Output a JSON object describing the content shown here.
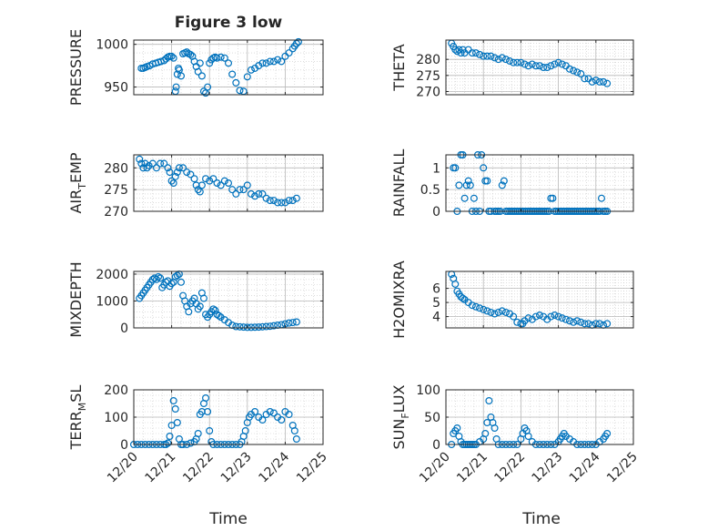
{
  "figure": {
    "title": "Figure 3 low",
    "xlabel_left": "Time",
    "xlabel_right": "Time",
    "x_tick_labels": [
      "12/20",
      "12/21",
      "12/22",
      "12/23",
      "12/24",
      "12/25"
    ]
  },
  "colors": {
    "marker": "#0072BD",
    "grid": "#c8c8c8",
    "axis": "#262626",
    "background": "#ffffff"
  },
  "chart_data": [
    {
      "id": "pressure",
      "type": "scatter",
      "marker": "open-circle",
      "ylabel_parts": [
        "PRESSURE"
      ],
      "xlim": [
        0,
        5
      ],
      "ylim": [
        941,
        1005
      ],
      "yticks": [
        950,
        1000
      ],
      "ytick_labels": [
        "950",
        "1000"
      ],
      "x": [
        0.2,
        0.25,
        0.3,
        0.35,
        0.42,
        0.5,
        0.58,
        0.65,
        0.72,
        0.8,
        0.85,
        0.9,
        0.95,
        1.0,
        1.05,
        1.1,
        1.12,
        1.15,
        1.18,
        1.2,
        1.25,
        1.3,
        1.35,
        1.4,
        1.45,
        1.5,
        1.55,
        1.6,
        1.65,
        1.7,
        1.75,
        1.8,
        1.85,
        1.9,
        1.95,
        2.0,
        2.05,
        2.1,
        2.15,
        2.2,
        2.3,
        2.4,
        2.5,
        2.6,
        2.7,
        2.8,
        2.9,
        3.0,
        3.1,
        3.2,
        3.3,
        3.4,
        3.5,
        3.6,
        3.7,
        3.8,
        3.9,
        4.0,
        4.1,
        4.2,
        4.25,
        4.3,
        4.35
      ],
      "y": [
        972,
        972,
        973,
        974,
        975,
        977,
        978,
        979,
        980,
        981,
        983,
        985,
        986,
        986,
        984,
        945,
        950,
        965,
        972,
        970,
        963,
        989,
        990,
        991,
        989,
        988,
        986,
        980,
        974,
        968,
        978,
        963,
        945,
        943,
        950,
        978,
        982,
        984,
        985,
        984,
        985,
        984,
        978,
        965,
        955,
        946,
        945,
        962,
        970,
        972,
        975,
        978,
        978,
        980,
        980,
        982,
        980,
        986,
        990,
        995,
        998,
        1001,
        1003
      ]
    },
    {
      "id": "theta",
      "type": "scatter",
      "marker": "open-circle",
      "ylabel_parts": [
        "THETA"
      ],
      "xlim": [
        0,
        5
      ],
      "ylim": [
        269,
        286
      ],
      "yticks": [
        270,
        275,
        280
      ],
      "ytick_labels": [
        "270",
        "275",
        "280"
      ],
      "x": [
        0.15,
        0.2,
        0.25,
        0.3,
        0.35,
        0.4,
        0.45,
        0.5,
        0.6,
        0.7,
        0.8,
        0.9,
        1.0,
        1.1,
        1.2,
        1.3,
        1.4,
        1.5,
        1.6,
        1.7,
        1.8,
        1.9,
        2.0,
        2.1,
        2.2,
        2.3,
        2.4,
        2.5,
        2.6,
        2.7,
        2.8,
        2.9,
        3.0,
        3.1,
        3.2,
        3.3,
        3.4,
        3.5,
        3.6,
        3.7,
        3.8,
        3.9,
        4.0,
        4.1,
        4.2,
        4.3
      ],
      "y": [
        285,
        284,
        283,
        282.5,
        283,
        282,
        283,
        282,
        283,
        282,
        282,
        281.5,
        281,
        281,
        281,
        280.5,
        280,
        280.5,
        280,
        279.5,
        279,
        279,
        279,
        278.5,
        278,
        278.5,
        278,
        278,
        277.5,
        277.5,
        278,
        278.5,
        279,
        278.5,
        278,
        277,
        276.5,
        276,
        275.5,
        274,
        274,
        273,
        273.5,
        273,
        273,
        272.5
      ]
    },
    {
      "id": "airtemp",
      "type": "scatter",
      "marker": "open-circle",
      "ylabel_parts": [
        "AIR",
        "T",
        "EMP"
      ],
      "xlim": [
        0,
        5
      ],
      "ylim": [
        270,
        283
      ],
      "yticks": [
        270,
        275,
        280
      ],
      "ytick_labels": [
        "270",
        "275",
        "280"
      ],
      "x": [
        0.15,
        0.2,
        0.25,
        0.3,
        0.35,
        0.4,
        0.5,
        0.6,
        0.7,
        0.8,
        0.9,
        0.95,
        1.0,
        1.05,
        1.1,
        1.15,
        1.2,
        1.3,
        1.4,
        1.5,
        1.6,
        1.65,
        1.7,
        1.75,
        1.8,
        1.9,
        2.0,
        2.1,
        2.2,
        2.3,
        2.4,
        2.5,
        2.6,
        2.7,
        2.8,
        2.9,
        3.0,
        3.1,
        3.2,
        3.3,
        3.4,
        3.5,
        3.6,
        3.7,
        3.8,
        3.9,
        4.0,
        4.1,
        4.2,
        4.3
      ],
      "y": [
        282,
        281,
        280,
        281,
        280,
        280.5,
        281,
        280,
        281,
        281,
        280,
        279,
        277,
        276.5,
        278,
        279,
        280,
        280,
        279,
        278.5,
        277.5,
        276,
        275,
        274.5,
        276,
        277.5,
        277,
        277.5,
        276.5,
        276,
        277,
        276.5,
        275,
        274,
        275,
        275,
        276,
        274,
        273.5,
        274,
        274,
        273,
        272.5,
        272.5,
        272,
        272,
        272,
        272.5,
        272.5,
        273
      ]
    },
    {
      "id": "rainfall",
      "type": "scatter",
      "marker": "open-circle",
      "ylabel_parts": [
        "RAINFALL"
      ],
      "xlim": [
        0,
        5
      ],
      "ylim": [
        0,
        1.3
      ],
      "yticks": [
        0,
        0.5,
        1
      ],
      "ytick_labels": [
        "0",
        "0.5",
        "1"
      ],
      "x": [
        0.2,
        0.25,
        0.3,
        0.35,
        0.4,
        0.45,
        0.5,
        0.55,
        0.6,
        0.65,
        0.7,
        0.75,
        0.8,
        0.85,
        0.9,
        0.95,
        1.0,
        1.05,
        1.1,
        1.15,
        1.2,
        1.3,
        1.35,
        1.4,
        1.45,
        1.5,
        1.55,
        1.6,
        1.65,
        1.7,
        1.75,
        1.8,
        1.85,
        1.9,
        1.95,
        2.0,
        2.05,
        2.1,
        2.15,
        2.2,
        2.25,
        2.3,
        2.35,
        2.4,
        2.45,
        2.5,
        2.55,
        2.6,
        2.65,
        2.7,
        2.75,
        2.8,
        2.85,
        2.9,
        2.95,
        3.0,
        3.05,
        3.1,
        3.15,
        3.2,
        3.25,
        3.3,
        3.35,
        3.4,
        3.45,
        3.5,
        3.55,
        3.6,
        3.65,
        3.7,
        3.75,
        3.8,
        3.85,
        3.9,
        3.95,
        4.0,
        4.05,
        4.1,
        4.15,
        4.2,
        4.25,
        4.3
      ],
      "y": [
        1,
        1,
        0,
        0.6,
        1.3,
        1.3,
        0.3,
        0.6,
        0.7,
        0.6,
        0,
        0.3,
        0,
        1.3,
        0,
        1.3,
        1,
        0.7,
        0.7,
        0,
        0,
        0,
        0,
        0,
        0,
        0.6,
        0.7,
        0,
        0,
        0,
        0,
        0,
        0,
        0,
        0,
        0,
        0,
        0,
        0,
        0,
        0,
        0,
        0,
        0,
        0,
        0,
        0,
        0,
        0,
        0,
        0,
        0.3,
        0.3,
        0,
        0,
        0,
        0,
        0,
        0,
        0,
        0,
        0,
        0,
        0,
        0,
        0,
        0,
        0,
        0,
        0,
        0,
        0,
        0,
        0,
        0,
        0,
        0,
        0,
        0.3,
        0,
        0,
        0
      ]
    },
    {
      "id": "mixdepth",
      "type": "scatter",
      "marker": "open-circle",
      "ylabel_parts": [
        "MIXDEPTH"
      ],
      "xlim": [
        0,
        5
      ],
      "ylim": [
        0,
        2100
      ],
      "yticks": [
        0,
        1000,
        2000
      ],
      "ytick_labels": [
        "0",
        "1000",
        "2000"
      ],
      "x": [
        0.15,
        0.2,
        0.25,
        0.3,
        0.35,
        0.4,
        0.45,
        0.5,
        0.55,
        0.6,
        0.65,
        0.7,
        0.75,
        0.8,
        0.85,
        0.9,
        0.95,
        1.0,
        1.05,
        1.1,
        1.15,
        1.2,
        1.25,
        1.3,
        1.35,
        1.4,
        1.45,
        1.5,
        1.55,
        1.6,
        1.65,
        1.7,
        1.75,
        1.8,
        1.85,
        1.9,
        1.95,
        2.0,
        2.05,
        2.1,
        2.15,
        2.2,
        2.25,
        2.3,
        2.4,
        2.5,
        2.6,
        2.7,
        2.8,
        2.9,
        3.0,
        3.1,
        3.2,
        3.3,
        3.4,
        3.5,
        3.6,
        3.7,
        3.8,
        3.9,
        4.0,
        4.1,
        4.2,
        4.3
      ],
      "y": [
        1100,
        1200,
        1300,
        1400,
        1500,
        1600,
        1700,
        1800,
        1850,
        1800,
        1900,
        1850,
        1500,
        1600,
        1700,
        1750,
        1550,
        1650,
        1700,
        1900,
        1950,
        2000,
        1700,
        1200,
        1000,
        800,
        600,
        900,
        1000,
        1100,
        900,
        700,
        800,
        1300,
        1100,
        500,
        400,
        500,
        600,
        700,
        650,
        500,
        450,
        400,
        300,
        200,
        100,
        50,
        40,
        30,
        20,
        20,
        25,
        30,
        40,
        50,
        60,
        80,
        100,
        120,
        150,
        180,
        200,
        220
      ]
    },
    {
      "id": "h2omixra",
      "type": "scatter",
      "marker": "open-circle",
      "ylabel_parts": [
        "H2OMIXRA"
      ],
      "xlim": [
        0,
        5
      ],
      "ylim": [
        3.2,
        7.2
      ],
      "yticks": [
        4,
        5,
        6
      ],
      "ytick_labels": [
        "4",
        "5",
        "6"
      ],
      "x": [
        0.15,
        0.2,
        0.25,
        0.3,
        0.35,
        0.4,
        0.45,
        0.5,
        0.6,
        0.7,
        0.8,
        0.9,
        1.0,
        1.1,
        1.2,
        1.3,
        1.4,
        1.5,
        1.6,
        1.7,
        1.8,
        1.9,
        2.0,
        2.05,
        2.1,
        2.2,
        2.3,
        2.4,
        2.5,
        2.6,
        2.7,
        2.8,
        2.9,
        3.0,
        3.1,
        3.2,
        3.3,
        3.4,
        3.5,
        3.6,
        3.7,
        3.8,
        3.9,
        4.0,
        4.1,
        4.2,
        4.3
      ],
      "y": [
        7,
        6.7,
        6.3,
        5.8,
        5.6,
        5.4,
        5.3,
        5.2,
        5.0,
        4.8,
        4.7,
        4.6,
        4.5,
        4.4,
        4.3,
        4.2,
        4.3,
        4.4,
        4.3,
        4.2,
        4.0,
        3.6,
        3.5,
        3.5,
        3.7,
        3.9,
        3.8,
        4.0,
        4.1,
        4.0,
        3.8,
        4.0,
        4.1,
        4.0,
        3.9,
        3.8,
        3.7,
        3.6,
        3.7,
        3.6,
        3.5,
        3.5,
        3.4,
        3.5,
        3.5,
        3.4,
        3.5
      ]
    },
    {
      "id": "terrmsl",
      "type": "scatter",
      "marker": "open-circle",
      "ylabel_parts": [
        "TERR",
        "M",
        "SL"
      ],
      "xlim": [
        0,
        5
      ],
      "ylim": [
        0,
        200
      ],
      "yticks": [
        0,
        100,
        200
      ],
      "ytick_labels": [
        "0",
        "100",
        "200"
      ],
      "x": [
        0.0,
        0.1,
        0.2,
        0.3,
        0.4,
        0.5,
        0.6,
        0.7,
        0.8,
        0.85,
        0.9,
        0.95,
        1.0,
        1.05,
        1.1,
        1.15,
        1.2,
        1.25,
        1.3,
        1.4,
        1.5,
        1.6,
        1.65,
        1.7,
        1.75,
        1.8,
        1.85,
        1.9,
        1.95,
        2.0,
        2.05,
        2.1,
        2.2,
        2.3,
        2.4,
        2.5,
        2.6,
        2.7,
        2.8,
        2.85,
        2.9,
        2.95,
        3.0,
        3.05,
        3.1,
        3.2,
        3.3,
        3.4,
        3.5,
        3.6,
        3.7,
        3.8,
        3.9,
        4.0,
        4.1,
        4.2,
        4.25,
        4.3
      ],
      "y": [
        0,
        0,
        0,
        0,
        0,
        0,
        0,
        0,
        0,
        0,
        5,
        30,
        70,
        160,
        130,
        80,
        20,
        0,
        0,
        0,
        5,
        10,
        20,
        40,
        110,
        120,
        150,
        170,
        120,
        50,
        10,
        0,
        0,
        0,
        0,
        0,
        0,
        0,
        0,
        10,
        30,
        50,
        80,
        100,
        110,
        120,
        100,
        90,
        110,
        120,
        115,
        100,
        90,
        120,
        110,
        70,
        50,
        20
      ]
    },
    {
      "id": "sunflux",
      "type": "scatter",
      "marker": "open-circle",
      "ylabel_parts": [
        "SUN",
        "F",
        "LUX"
      ],
      "xlim": [
        0,
        5
      ],
      "ylim": [
        0,
        100
      ],
      "yticks": [
        0,
        50,
        100
      ],
      "ytick_labels": [
        "0",
        "50",
        "100"
      ],
      "x": [
        0.15,
        0.2,
        0.25,
        0.3,
        0.35,
        0.4,
        0.45,
        0.5,
        0.55,
        0.6,
        0.65,
        0.7,
        0.75,
        0.8,
        0.9,
        1.0,
        1.05,
        1.1,
        1.15,
        1.2,
        1.25,
        1.3,
        1.35,
        1.4,
        1.5,
        1.6,
        1.7,
        1.8,
        1.9,
        2.0,
        2.05,
        2.1,
        2.15,
        2.2,
        2.3,
        2.4,
        2.5,
        2.6,
        2.7,
        2.8,
        2.9,
        3.0,
        3.05,
        3.1,
        3.15,
        3.2,
        3.3,
        3.4,
        3.5,
        3.6,
        3.7,
        3.8,
        3.9,
        4.0,
        4.1,
        4.2,
        4.25,
        4.3
      ],
      "y": [
        0,
        20,
        25,
        30,
        15,
        5,
        0,
        0,
        0,
        0,
        0,
        0,
        0,
        0,
        5,
        10,
        20,
        40,
        80,
        50,
        40,
        30,
        10,
        0,
        0,
        0,
        0,
        0,
        0,
        10,
        20,
        30,
        25,
        15,
        5,
        0,
        0,
        0,
        0,
        0,
        0,
        5,
        10,
        15,
        20,
        15,
        10,
        5,
        0,
        0,
        0,
        0,
        0,
        0,
        5,
        10,
        15,
        20
      ]
    }
  ]
}
